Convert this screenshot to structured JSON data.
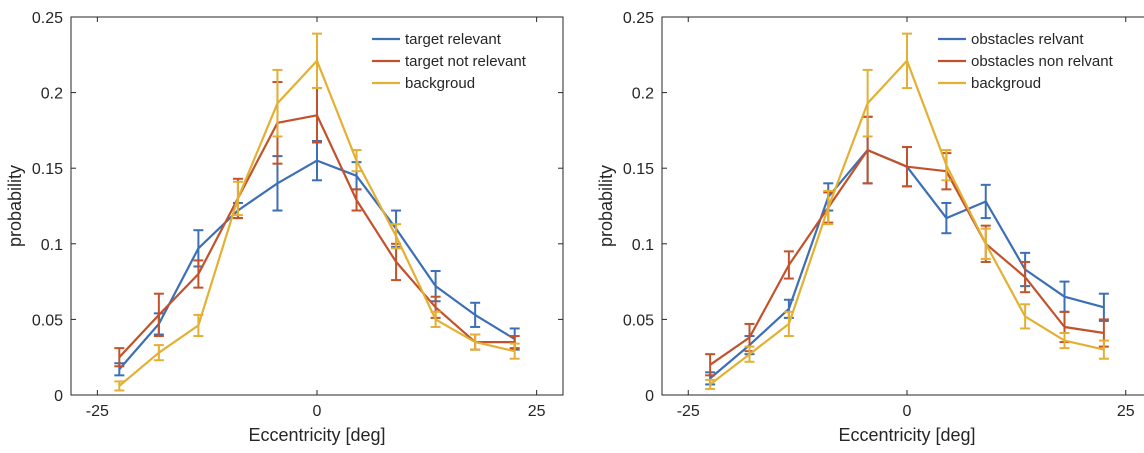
{
  "chart_data": [
    {
      "type": "line",
      "xlabel": "Eccentricity [deg]",
      "ylabel": "probability",
      "xlim": [
        -28,
        28
      ],
      "ylim": [
        0,
        0.25
      ],
      "xticks": [
        -25,
        0,
        25
      ],
      "xtick_labels": [
        "-25",
        "0",
        "25"
      ],
      "yticks": [
        0,
        0.05,
        0.1,
        0.15,
        0.2,
        0.25
      ],
      "ytick_labels": [
        "0",
        "0.05",
        "0.1",
        "0.15",
        "0.2",
        "0.25"
      ],
      "grid": false,
      "legend_position": "top-right",
      "x": [
        -22.5,
        -18,
        -13.5,
        -9,
        -4.5,
        0,
        4.5,
        9,
        13.5,
        18,
        22.5
      ],
      "series": [
        {
          "name": "target relevant",
          "color": "#3D6FB6",
          "values": [
            0.017,
            0.047,
            0.097,
            0.122,
            0.14,
            0.155,
            0.145,
            0.11,
            0.072,
            0.053,
            0.037
          ],
          "errors": [
            0.004,
            0.007,
            0.012,
            0.005,
            0.018,
            0.013,
            0.009,
            0.012,
            0.01,
            0.008,
            0.007
          ]
        },
        {
          "name": "target not relevant",
          "color": "#C2522B",
          "values": [
            0.025,
            0.053,
            0.08,
            0.13,
            0.18,
            0.185,
            0.129,
            0.088,
            0.058,
            0.035,
            0.035
          ],
          "errors": [
            0.006,
            0.014,
            0.009,
            0.013,
            0.027,
            0.018,
            0.007,
            0.012,
            0.007,
            0.005,
            0.004
          ]
        },
        {
          "name": "backgroud",
          "color": "#E3B034",
          "values": [
            0.006,
            0.028,
            0.046,
            0.13,
            0.193,
            0.221,
            0.155,
            0.105,
            0.05,
            0.035,
            0.029
          ],
          "errors": [
            0.003,
            0.005,
            0.007,
            0.011,
            0.022,
            0.018,
            0.007,
            0.008,
            0.005,
            0.005,
            0.005
          ]
        }
      ]
    },
    {
      "type": "line",
      "xlabel": "Eccentricity [deg]",
      "ylabel": "probability",
      "xlim": [
        -28,
        28
      ],
      "ylim": [
        0,
        0.25
      ],
      "xticks": [
        -25,
        0,
        25
      ],
      "xtick_labels": [
        "-25",
        "0",
        "25"
      ],
      "yticks": [
        0,
        0.05,
        0.1,
        0.15,
        0.2,
        0.25
      ],
      "ytick_labels": [
        "0",
        "0.05",
        "0.1",
        "0.15",
        "0.2",
        "0.25"
      ],
      "grid": false,
      "legend_position": "top-right",
      "x": [
        -22.5,
        -18,
        -13.5,
        -9,
        -4.5,
        0,
        4.5,
        9,
        13.5,
        18,
        22.5
      ],
      "series": [
        {
          "name": "obstacles relvant",
          "color": "#3D6FB6",
          "values": [
            0.011,
            0.033,
            0.057,
            0.131,
            0.162,
            0.151,
            0.117,
            0.128,
            0.083,
            0.065,
            0.058
          ],
          "errors": [
            0.004,
            0.006,
            0.006,
            0.009,
            0.022,
            0.013,
            0.01,
            0.011,
            0.011,
            0.01,
            0.009
          ]
        },
        {
          "name": "obstacles non relvant",
          "color": "#C2522B",
          "values": [
            0.02,
            0.038,
            0.086,
            0.124,
            0.162,
            0.151,
            0.148,
            0.1,
            0.078,
            0.045,
            0.041
          ],
          "errors": [
            0.007,
            0.009,
            0.009,
            0.01,
            0.022,
            0.013,
            0.012,
            0.012,
            0.01,
            0.01,
            0.009
          ]
        },
        {
          "name": "backgroud",
          "color": "#E3B034",
          "values": [
            0.007,
            0.027,
            0.047,
            0.124,
            0.193,
            0.221,
            0.152,
            0.1,
            0.052,
            0.036,
            0.03
          ],
          "errors": [
            0.003,
            0.005,
            0.008,
            0.011,
            0.022,
            0.018,
            0.01,
            0.01,
            0.008,
            0.005,
            0.006
          ]
        }
      ]
    }
  ]
}
